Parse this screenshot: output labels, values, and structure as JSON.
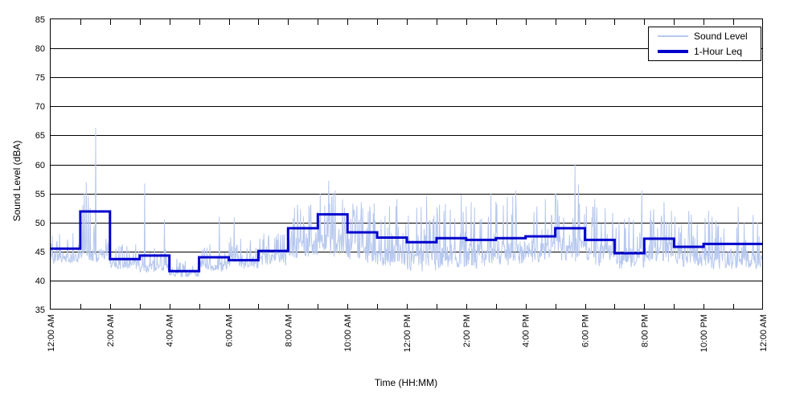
{
  "chart_data": {
    "type": "line",
    "title": "",
    "xlabel": "Time (HH:MM)",
    "ylabel": "Sound Level (dBA)",
    "ylim": [
      35,
      85
    ],
    "ytick_values": [
      35,
      40,
      45,
      50,
      55,
      60,
      65,
      70,
      75,
      80,
      85
    ],
    "x_range_hours": [
      0,
      24
    ],
    "xtick_major_hours": [
      0,
      2,
      4,
      6,
      8,
      10,
      12,
      14,
      16,
      18,
      20,
      22,
      24
    ],
    "xtick_major_labels": [
      "12:00 AM",
      "2:00 AM",
      "4:00 AM",
      "6:00 AM",
      "8:00 AM",
      "10:00 AM",
      "12:00 PM",
      "2:00 PM",
      "4:00 PM",
      "6:00 PM",
      "8:00 PM",
      "10:00 PM",
      "12:00 AM"
    ],
    "xtick_minor_every_hours": 1,
    "grid": {
      "horizontal": true,
      "vertical": false,
      "color": "#000000"
    },
    "legend": {
      "position": "top-right",
      "entries": [
        {
          "label": "Sound Level",
          "color": "#b7c8ef",
          "line_width": 2
        },
        {
          "label": "1-Hour Leq",
          "color": "#0000cc",
          "line_width": 4
        }
      ]
    },
    "colors": {
      "sound_level": "#b7c8ef",
      "leq": "#0000cc",
      "axis": "#000000",
      "background": "#ffffff"
    },
    "series": [
      {
        "name": "Sound Level",
        "render": "minute-line",
        "approximation_note": "dense ~1-minute samples reconstructed from per-hour min/max envelope read off the chart, plus notable peaks",
        "hourly_envelope_dBA": [
          [
            42.5,
            48.5
          ],
          [
            42.5,
            50.0
          ],
          [
            41.5,
            46.5
          ],
          [
            41.0,
            46.0
          ],
          [
            40.3,
            44.0
          ],
          [
            41.0,
            47.0
          ],
          [
            41.5,
            48.0
          ],
          [
            42.0,
            48.5
          ],
          [
            43.0,
            54.0
          ],
          [
            43.0,
            56.0
          ],
          [
            42.0,
            54.0
          ],
          [
            41.5,
            54.0
          ],
          [
            40.5,
            53.5
          ],
          [
            41.0,
            54.0
          ],
          [
            41.0,
            54.5
          ],
          [
            41.5,
            55.5
          ],
          [
            42.0,
            54.0
          ],
          [
            42.0,
            56.0
          ],
          [
            41.5,
            54.0
          ],
          [
            41.0,
            53.0
          ],
          [
            42.0,
            53.5
          ],
          [
            41.5,
            52.0
          ],
          [
            41.0,
            52.0
          ],
          [
            41.0,
            51.5
          ]
        ],
        "notable_peaks_minute_dBA": [
          [
            65,
            53.0
          ],
          [
            68,
            55.0
          ],
          [
            72,
            57.0
          ],
          [
            76,
            54.5
          ],
          [
            80,
            52.5
          ],
          [
            91,
            66.3
          ],
          [
            190,
            56.7
          ],
          [
            230,
            50.5
          ],
          [
            341,
            51.0
          ],
          [
            371,
            50.9
          ],
          [
            545,
            55.0
          ],
          [
            562,
            57.2
          ],
          [
            575,
            55.5
          ],
          [
            590,
            54.0
          ],
          [
            628,
            53.5
          ],
          [
            700,
            54.0
          ],
          [
            760,
            54.5
          ],
          [
            830,
            54.8
          ],
          [
            890,
            55.0
          ],
          [
            940,
            55.5
          ],
          [
            1000,
            54.0
          ],
          [
            1060,
            60.0
          ],
          [
            1067,
            56.5
          ],
          [
            1100,
            54.0
          ],
          [
            1195,
            55.5
          ],
          [
            1240,
            53.5
          ],
          [
            1290,
            52.0
          ],
          [
            1330,
            52.0
          ],
          [
            1390,
            52.7
          ],
          [
            1420,
            51.3
          ]
        ],
        "random_seed": 42
      },
      {
        "name": "1-Hour Leq",
        "render": "step-hourly",
        "hourly_values_dBA": [
          45.5,
          51.9,
          43.7,
          44.3,
          41.6,
          44.0,
          43.5,
          45.1,
          49.0,
          51.4,
          48.3,
          47.4,
          46.6,
          47.3,
          47.0,
          47.3,
          47.6,
          49.0,
          47.0,
          44.7,
          47.2,
          45.8,
          46.3,
          46.3
        ]
      }
    ]
  }
}
